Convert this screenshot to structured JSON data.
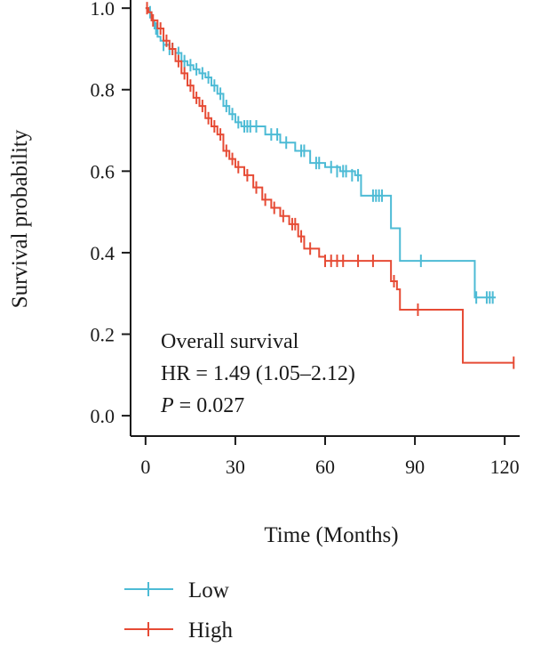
{
  "chart_data": {
    "type": "line",
    "subtype": "kaplan-meier",
    "ylabel": "Survival probability",
    "xlabel": "Time (Months)",
    "xlim": [
      -5,
      125
    ],
    "ylim": [
      -0.05,
      1.02
    ],
    "x_ticks": [
      0,
      30,
      60,
      90,
      120
    ],
    "y_ticks": [
      0.0,
      0.2,
      0.4,
      0.6,
      0.8,
      1.0
    ],
    "y_tick_labels": [
      "0.0",
      "0.2",
      "0.4",
      "0.6",
      "0.8",
      "1.0"
    ],
    "grid": false,
    "legend_position": "bottom-left",
    "annotations": {
      "title": "Overall survival",
      "hr": "HR = 1.49 (1.05–2.12)",
      "p_label": "P",
      "p_value": " = 0.027"
    },
    "series": [
      {
        "name": "Low",
        "color": "#4DBBD5",
        "steps": [
          [
            0,
            1.0
          ],
          [
            1,
            0.99
          ],
          [
            2,
            0.97
          ],
          [
            3,
            0.95
          ],
          [
            4,
            0.93
          ],
          [
            5,
            0.92
          ],
          [
            6,
            0.91
          ],
          [
            8,
            0.9
          ],
          [
            10,
            0.89
          ],
          [
            12,
            0.87
          ],
          [
            14,
            0.86
          ],
          [
            16,
            0.85
          ],
          [
            18,
            0.84
          ],
          [
            20,
            0.83
          ],
          [
            22,
            0.81
          ],
          [
            24,
            0.79
          ],
          [
            26,
            0.76
          ],
          [
            28,
            0.74
          ],
          [
            30,
            0.72
          ],
          [
            32,
            0.71
          ],
          [
            36,
            0.71
          ],
          [
            40,
            0.69
          ],
          [
            45,
            0.67
          ],
          [
            50,
            0.65
          ],
          [
            55,
            0.62
          ],
          [
            60,
            0.61
          ],
          [
            65,
            0.6
          ],
          [
            70,
            0.59
          ],
          [
            72,
            0.54
          ],
          [
            80,
            0.54
          ],
          [
            82,
            0.46
          ],
          [
            85,
            0.38
          ],
          [
            109,
            0.38
          ],
          [
            110,
            0.29
          ],
          [
            117,
            0.29
          ]
        ],
        "censors": [
          [
            1.5,
            0.99
          ],
          [
            3.5,
            0.95
          ],
          [
            6,
            0.91
          ],
          [
            8,
            0.9
          ],
          [
            9,
            0.9
          ],
          [
            11,
            0.89
          ],
          [
            13,
            0.87
          ],
          [
            15,
            0.86
          ],
          [
            17,
            0.85
          ],
          [
            19,
            0.84
          ],
          [
            21,
            0.83
          ],
          [
            23,
            0.81
          ],
          [
            25,
            0.79
          ],
          [
            27,
            0.76
          ],
          [
            29,
            0.74
          ],
          [
            31,
            0.72
          ],
          [
            33,
            0.71
          ],
          [
            34,
            0.71
          ],
          [
            35,
            0.71
          ],
          [
            37,
            0.71
          ],
          [
            42,
            0.69
          ],
          [
            44,
            0.69
          ],
          [
            47,
            0.67
          ],
          [
            52,
            0.65
          ],
          [
            53,
            0.65
          ],
          [
            57,
            0.62
          ],
          [
            58,
            0.62
          ],
          [
            62,
            0.61
          ],
          [
            64,
            0.6
          ],
          [
            66,
            0.6
          ],
          [
            67,
            0.6
          ],
          [
            69,
            0.59
          ],
          [
            71,
            0.59
          ],
          [
            76,
            0.54
          ],
          [
            77,
            0.54
          ],
          [
            78,
            0.54
          ],
          [
            79,
            0.54
          ],
          [
            92,
            0.38
          ],
          [
            110.5,
            0.29
          ],
          [
            114,
            0.29
          ],
          [
            115,
            0.29
          ],
          [
            116,
            0.29
          ]
        ]
      },
      {
        "name": "High",
        "color": "#E64B35",
        "steps": [
          [
            0,
            1.0
          ],
          [
            1,
            0.99
          ],
          [
            2,
            0.97
          ],
          [
            4,
            0.95
          ],
          [
            6,
            0.92
          ],
          [
            8,
            0.9
          ],
          [
            10,
            0.87
          ],
          [
            12,
            0.84
          ],
          [
            14,
            0.81
          ],
          [
            16,
            0.78
          ],
          [
            18,
            0.76
          ],
          [
            20,
            0.73
          ],
          [
            22,
            0.71
          ],
          [
            24,
            0.69
          ],
          [
            26,
            0.65
          ],
          [
            28,
            0.63
          ],
          [
            30,
            0.61
          ],
          [
            33,
            0.59
          ],
          [
            36,
            0.56
          ],
          [
            39,
            0.53
          ],
          [
            42,
            0.51
          ],
          [
            45,
            0.49
          ],
          [
            48,
            0.47
          ],
          [
            51,
            0.44
          ],
          [
            53,
            0.41
          ],
          [
            58,
            0.39
          ],
          [
            60,
            0.38
          ],
          [
            70,
            0.38
          ],
          [
            82,
            0.33
          ],
          [
            84,
            0.31
          ],
          [
            85,
            0.26
          ],
          [
            105,
            0.26
          ],
          [
            106,
            0.13
          ],
          [
            123,
            0.13
          ]
        ],
        "censors": [
          [
            0.5,
            1.0
          ],
          [
            2.5,
            0.97
          ],
          [
            5,
            0.95
          ],
          [
            7,
            0.92
          ],
          [
            9,
            0.9
          ],
          [
            11,
            0.87
          ],
          [
            13,
            0.84
          ],
          [
            15,
            0.81
          ],
          [
            17,
            0.78
          ],
          [
            19,
            0.76
          ],
          [
            21,
            0.73
          ],
          [
            23,
            0.71
          ],
          [
            25,
            0.69
          ],
          [
            27,
            0.65
          ],
          [
            29,
            0.63
          ],
          [
            31,
            0.61
          ],
          [
            34,
            0.59
          ],
          [
            37,
            0.56
          ],
          [
            40,
            0.53
          ],
          [
            43,
            0.51
          ],
          [
            46,
            0.49
          ],
          [
            49,
            0.47
          ],
          [
            50,
            0.47
          ],
          [
            52,
            0.44
          ],
          [
            55,
            0.41
          ],
          [
            60,
            0.38
          ],
          [
            62,
            0.38
          ],
          [
            64,
            0.38
          ],
          [
            66,
            0.38
          ],
          [
            71,
            0.38
          ],
          [
            76,
            0.38
          ],
          [
            83,
            0.33
          ],
          [
            91,
            0.26
          ],
          [
            123,
            0.13
          ]
        ]
      }
    ]
  }
}
